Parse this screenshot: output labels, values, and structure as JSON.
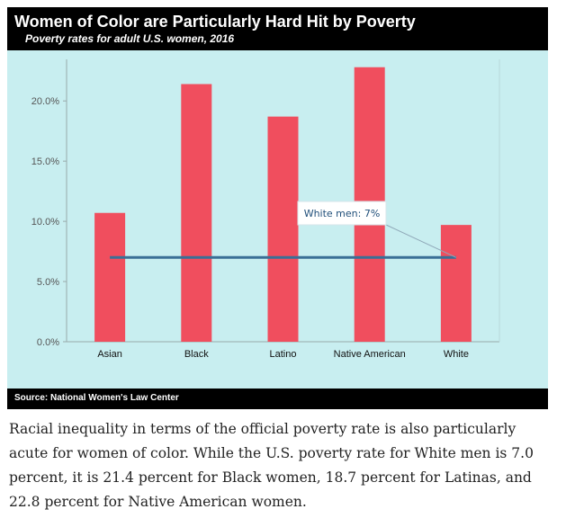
{
  "chart_data": {
    "type": "bar",
    "title": "Women of Color are Particularly Hard Hit by Poverty",
    "subtitle": "Poverty rates for adult U.S. women, 2016",
    "categories": [
      "Asian",
      "Black",
      "Latino",
      "Native American",
      "White"
    ],
    "values": [
      10.7,
      21.4,
      18.7,
      22.8,
      9.7
    ],
    "y_ticks": [
      "0.0%",
      "5.0%",
      "10.0%",
      "15.0%",
      "20.0%"
    ],
    "ylim": [
      0,
      24.2
    ],
    "reference_line": {
      "value": 7.0,
      "label": "White men: 7%"
    },
    "source": "Source: National Women's Law Center",
    "bar_color": "#f04e5e",
    "reference_color": "#3a6f96",
    "background_color": "#c8eef0"
  },
  "caption": "Racial inequality in terms of the official poverty rate is also particularly acute for women of color. While the U.S. poverty rate for White men is 7.0 percent, it is 21.4 percent for Black women, 18.7 percent for Latinas, and 22.8 percent for Native American women."
}
